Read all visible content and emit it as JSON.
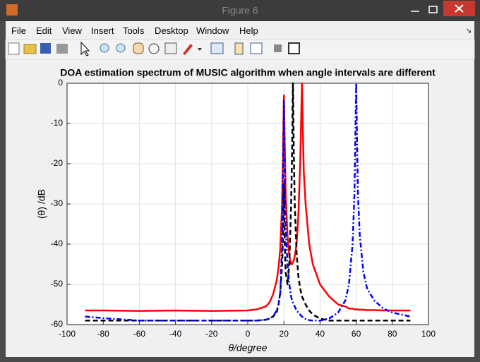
{
  "window": {
    "title": "Figure 6",
    "menu": [
      "File",
      "Edit",
      "View",
      "Insert",
      "Tools",
      "Desktop",
      "Window",
      "Help"
    ]
  },
  "chart_data": {
    "type": "line",
    "title": "DOA estimation spectrum of MUSIC algorithm when angle intervals are different",
    "x_label": "θ/degree",
    "y_label": "(θ) /dB",
    "x": [
      -90,
      -80,
      -60,
      -40,
      -20,
      0,
      5,
      10,
      12,
      14,
      16,
      17,
      18,
      19,
      19.5,
      20,
      20.5,
      21,
      22,
      23,
      24,
      24.5,
      25,
      25.5,
      26,
      27,
      28,
      29,
      29.5,
      30,
      30.5,
      31,
      32,
      34,
      36,
      40,
      45,
      50,
      54,
      56,
      58,
      59,
      59.5,
      60,
      60.5,
      61,
      62,
      64,
      66,
      70,
      75,
      80,
      90
    ],
    "series": [
      {
        "color": "#ff0000",
        "linestyle": "solid",
        "linewidth": 2.5,
        "values": [
          -56.5,
          -56.5,
          -56.6,
          -56.5,
          -56.6,
          -56.5,
          -56.2,
          -55.5,
          -54.5,
          -52.5,
          -49,
          -46,
          -41,
          -30,
          -18,
          -3,
          -16,
          -28,
          -38,
          -43,
          -45,
          -45,
          -44.5,
          -44,
          -43,
          -40,
          -33,
          -20,
          -10,
          0,
          -12,
          -22,
          -30,
          -40,
          -45,
          -50,
          -53,
          -55,
          -55.5,
          -56,
          -56,
          -56.2,
          -56.2,
          -56.2,
          -56.2,
          -56.3,
          -56.3,
          -56.3,
          -56.4,
          -56.4,
          -56.5,
          -56.5,
          -56.5
        ]
      },
      {
        "color": "#000000",
        "linestyle": "dashed",
        "linewidth": 2.5,
        "values": [
          -59,
          -59,
          -59,
          -59,
          -59,
          -59,
          -59,
          -58.8,
          -58.5,
          -58,
          -57,
          -55,
          -52,
          -45,
          -38,
          -25,
          -40,
          -47,
          -50,
          -45,
          -30,
          -18,
          0,
          -18,
          -30,
          -42,
          -48,
          -51,
          -52,
          -53,
          -53.5,
          -54,
          -55,
          -56.5,
          -57.5,
          -58.5,
          -59,
          -59,
          -59,
          -59,
          -59,
          -59,
          -59,
          -59,
          -59,
          -59,
          -59,
          -59,
          -59,
          -59,
          -59,
          -59,
          -59
        ]
      },
      {
        "color": "#0000ff",
        "linestyle": "dashdot",
        "linewidth": 2.5,
        "values": [
          -58,
          -58.4,
          -59,
          -59,
          -59,
          -59,
          -59,
          -58.8,
          -58.5,
          -58,
          -56.5,
          -55,
          -52,
          -40,
          -22,
          -4,
          -25,
          -36,
          -45,
          -50,
          -53,
          -54,
          -54.5,
          -55,
          -55.5,
          -56.5,
          -57,
          -57.5,
          -57.8,
          -58,
          -58.2,
          -58.4,
          -58.6,
          -58.9,
          -59,
          -59,
          -58.5,
          -57,
          -54,
          -50,
          -40,
          -28,
          -15,
          0,
          -15,
          -28,
          -38,
          -47,
          -51,
          -54,
          -56,
          -57,
          -58
        ]
      }
    ],
    "xlim": [
      -100,
      100
    ],
    "xticks": [
      -100,
      -80,
      -60,
      -40,
      -20,
      0,
      20,
      40,
      60,
      80,
      100
    ],
    "ylim": [
      -60,
      0
    ],
    "yticks": [
      0,
      -10,
      -20,
      -30,
      -40,
      -50,
      -60
    ],
    "grid": true
  }
}
